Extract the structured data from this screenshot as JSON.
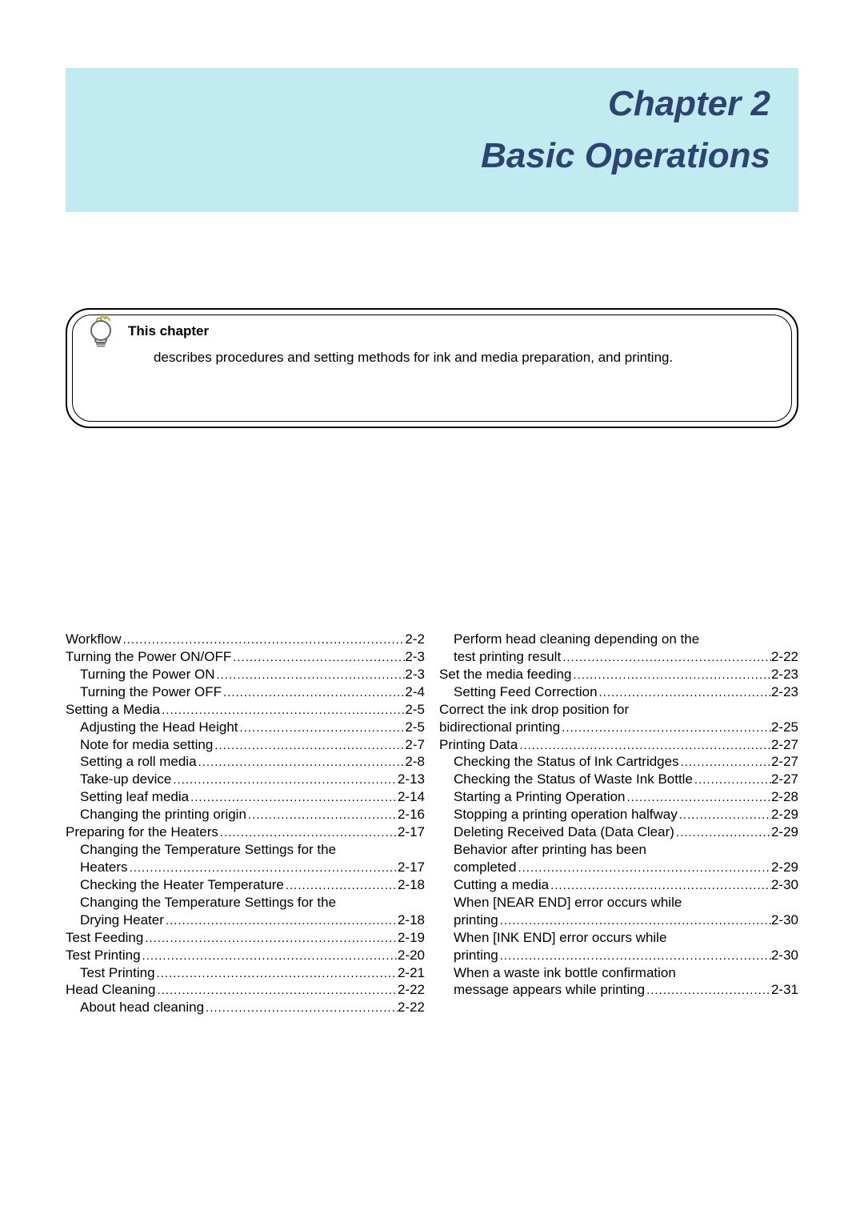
{
  "banner": {
    "chapter_number": "Chapter 2",
    "title": "Basic Operations",
    "bg_color": "#c0ebf0",
    "text_color": "#2d4470"
  },
  "info_box": {
    "heading": "This chapter",
    "description": "describes procedures and setting methods for ink and media preparation, and printing."
  },
  "toc": {
    "left": [
      {
        "label": "Workflow",
        "page": "2-2",
        "indent": 0
      },
      {
        "label": "Turning the Power ON/OFF",
        "page": "2-3",
        "indent": 0
      },
      {
        "label": "Turning the Power ON",
        "page": "2-3",
        "indent": 1
      },
      {
        "label": "Turning the Power OFF",
        "page": "2-4",
        "indent": 1
      },
      {
        "label": "Setting a Media",
        "page": "2-5",
        "indent": 0
      },
      {
        "label": "Adjusting the Head Height",
        "page": "2-5",
        "indent": 1
      },
      {
        "label": "Note for media setting",
        "page": "2-7",
        "indent": 1
      },
      {
        "label": "Setting a roll media",
        "page": "2-8",
        "indent": 1
      },
      {
        "label": "Take-up device",
        "page": "2-13",
        "indent": 1
      },
      {
        "label": "Setting leaf media",
        "page": "2-14",
        "indent": 1
      },
      {
        "label": "Changing the printing origin",
        "page": "2-16",
        "indent": 1
      },
      {
        "label": "Preparing for the Heaters",
        "page": "2-17",
        "indent": 0
      },
      {
        "label": "Changing the Temperature Settings for the Heaters",
        "page": "2-17",
        "indent": 1,
        "wrap": true
      },
      {
        "label": "Checking the Heater Temperature",
        "page": "2-18",
        "indent": 1
      },
      {
        "label": "Changing the Temperature Settings for the Drying Heater",
        "page": "2-18",
        "indent": 1,
        "wrap": true
      },
      {
        "label": "Test Feeding",
        "page": "2-19",
        "indent": 0
      },
      {
        "label": "Test Printing",
        "page": "2-20",
        "indent": 0
      },
      {
        "label": "Test Printing",
        "page": "2-21",
        "indent": 1
      },
      {
        "label": "Head Cleaning",
        "page": "2-22",
        "indent": 0
      },
      {
        "label": "About head cleaning",
        "page": "2-22",
        "indent": 1
      }
    ],
    "right": [
      {
        "label": "Perform head cleaning depending on the test printing result",
        "page": "2-22",
        "indent": 1,
        "wrap": true
      },
      {
        "label": "Set the media feeding",
        "page": "2-23",
        "indent": 0
      },
      {
        "label": "Setting Feed Correction",
        "page": "2-23",
        "indent": 1
      },
      {
        "label": "Correct the ink drop position for bidirectional printing",
        "page": "2-25",
        "indent": 0,
        "wrap": true
      },
      {
        "label": "Printing Data",
        "page": "2-27",
        "indent": 0
      },
      {
        "label": "Checking the Status of Ink Cartridges",
        "page": "2-27",
        "indent": 1
      },
      {
        "label": "Checking the Status of Waste Ink Bottle",
        "page": "2-27",
        "indent": 1
      },
      {
        "label": "Starting a Printing Operation",
        "page": "2-28",
        "indent": 1
      },
      {
        "label": "Stopping a printing operation halfway",
        "page": "2-29",
        "indent": 1
      },
      {
        "label": "Deleting Received Data (Data Clear)",
        "page": "2-29",
        "indent": 1
      },
      {
        "label": "Behavior after printing has been completed",
        "page": "2-29",
        "indent": 1,
        "wrap": true
      },
      {
        "label": "Cutting a media",
        "page": "2-30",
        "indent": 1
      },
      {
        "label": "When [NEAR END] error occurs while printing",
        "page": "2-30",
        "indent": 1,
        "wrap": true
      },
      {
        "label": "When [INK END] error occurs while printing",
        "page": "2-30",
        "indent": 1,
        "wrap": true
      },
      {
        "label": "When a waste ink bottle confirmation message appears while printing",
        "page": "2-31",
        "indent": 1,
        "wrap": true
      }
    ]
  }
}
